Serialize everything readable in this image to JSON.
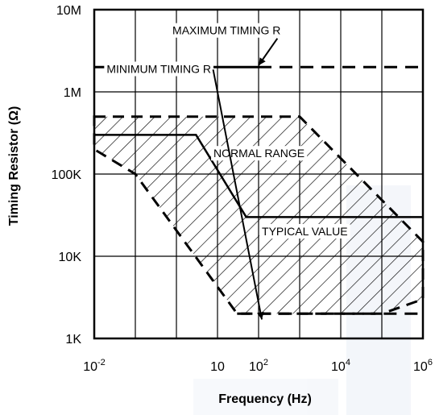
{
  "chart_data": {
    "type": "line",
    "xlabel": "Frequency (Hz)",
    "ylabel": "Timing Resistor  (Ω)",
    "x_scale": "log",
    "y_scale": "log",
    "xlim": [
      0.01,
      1000000
    ],
    "ylim": [
      1000,
      10000000
    ],
    "grid": true,
    "x_ticks": [
      {
        "value": 0.01,
        "base": "10",
        "exp": "-2"
      },
      {
        "value": 10,
        "base": "10",
        "exp": ""
      },
      {
        "value": 100,
        "base": "10",
        "exp": "2"
      },
      {
        "value": 10000,
        "base": "10",
        "exp": "4"
      },
      {
        "value": 1000000,
        "base": "10",
        "exp": "6"
      }
    ],
    "y_ticks": [
      {
        "value": 1000,
        "label": "1K"
      },
      {
        "value": 10000,
        "label": "10K"
      },
      {
        "value": 100000,
        "label": "100K"
      },
      {
        "value": 1000000,
        "label": "1M"
      },
      {
        "value": 10000000,
        "label": "10M"
      }
    ],
    "series": [
      {
        "name": "MAXIMUM TIMING R",
        "style": "solid-then-dashed",
        "solid_until_x": 100,
        "points": [
          [
            0.01,
            2000000
          ],
          [
            1000000,
            2000000
          ]
        ]
      },
      {
        "name": "MINIMUM TIMING R",
        "style": "dashed",
        "points": [
          [
            30,
            2000
          ],
          [
            1000000,
            2000
          ]
        ]
      },
      {
        "name": "TYPICAL VALUE",
        "style": "solid",
        "points": [
          [
            0.01,
            300000
          ],
          [
            3,
            300000
          ],
          [
            50,
            30000
          ],
          [
            1000000,
            30000
          ]
        ]
      },
      {
        "name": "NORMAL  RANGE",
        "style": "dashed-hatched-region",
        "polygon": [
          [
            0.01,
            500000
          ],
          [
            1000,
            500000
          ],
          [
            1000000,
            15000
          ],
          [
            1000000,
            3000
          ],
          [
            100000,
            2000
          ],
          [
            30,
            2000
          ],
          [
            0.1,
            100000
          ],
          [
            0.01,
            200000
          ]
        ]
      }
    ],
    "annotations": [
      {
        "text": "MAXIMUM TIMING R",
        "x": 0.8,
        "y": 5000000,
        "arrow_to": [
          100,
          2100000
        ]
      },
      {
        "text": "NORMAL  RANGE",
        "x": 8,
        "y": 160000
      },
      {
        "text": "TYPICAL VALUE",
        "x": 120,
        "y": 18000
      },
      {
        "text": "MINIMUM TIMING R",
        "x": 0.02,
        "y": 1700000,
        "arrow_to": [
          120,
          1700
        ]
      }
    ]
  }
}
